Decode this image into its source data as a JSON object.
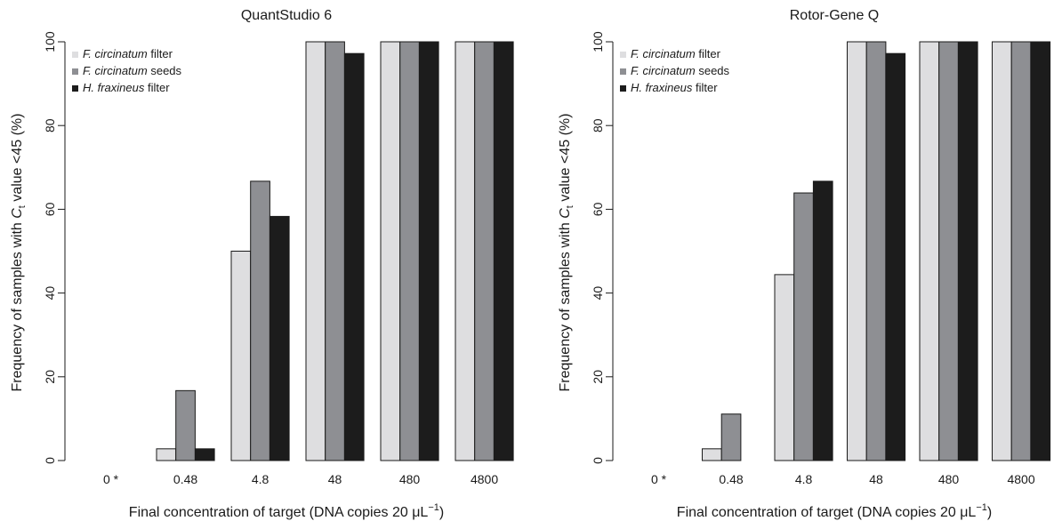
{
  "chart_data": [
    {
      "type": "bar",
      "title": "QuantStudio 6",
      "xlabel": "Final concentration of target (DNA copies 20 μL",
      "xlabel_sup": "−1",
      "xlabel_suffix": ")",
      "ylabel_prefix": "Frequency of samples with ",
      "ylabel_var": "C",
      "ylabel_sub": "t",
      "ylabel_suffix": " value <45 (%)",
      "categories": [
        "0 *",
        "0.48",
        "4.8",
        "48",
        "480",
        "4800"
      ],
      "ylim": [
        0,
        100
      ],
      "yticks": [
        "0",
        "20",
        "40",
        "60",
        "80",
        "100"
      ],
      "grid": false,
      "legend_position": "top-left",
      "series": [
        {
          "name": "F. circinatum",
          "name_suffix": " filter",
          "color": "#dedee0",
          "values": [
            0,
            2.8,
            50,
            100,
            100,
            100
          ]
        },
        {
          "name": "F. circinatum",
          "name_suffix": " seeds",
          "color": "#8e8f93",
          "values": [
            0,
            16.7,
            66.7,
            100,
            100,
            100
          ]
        },
        {
          "name": "H. fraxineus",
          "name_suffix": " filter",
          "color": "#1c1c1c",
          "values": [
            0,
            2.8,
            58.3,
            97.2,
            100,
            100
          ]
        }
      ]
    },
    {
      "type": "bar",
      "title": "Rotor-Gene Q",
      "xlabel": "Final concentration of target (DNA copies 20 μL",
      "xlabel_sup": "−1",
      "xlabel_suffix": ")",
      "ylabel_prefix": "Frequency of samples with ",
      "ylabel_var": "C",
      "ylabel_sub": "t",
      "ylabel_suffix": " value <45 (%)",
      "categories": [
        "0 *",
        "0.48",
        "4.8",
        "48",
        "480",
        "4800"
      ],
      "ylim": [
        0,
        100
      ],
      "yticks": [
        "0",
        "20",
        "40",
        "60",
        "80",
        "100"
      ],
      "grid": false,
      "legend_position": "top-left",
      "series": [
        {
          "name": "F. circinatum",
          "name_suffix": " filter",
          "color": "#dedee0",
          "values": [
            0,
            2.8,
            44.4,
            100,
            100,
            100
          ]
        },
        {
          "name": "F. circinatum",
          "name_suffix": " seeds",
          "color": "#8e8f93",
          "values": [
            0,
            11.1,
            63.9,
            100,
            100,
            100
          ]
        },
        {
          "name": "H. fraxineus",
          "name_suffix": " filter",
          "color": "#1c1c1c",
          "values": [
            0,
            0,
            66.7,
            97.2,
            100,
            100
          ]
        }
      ]
    }
  ]
}
